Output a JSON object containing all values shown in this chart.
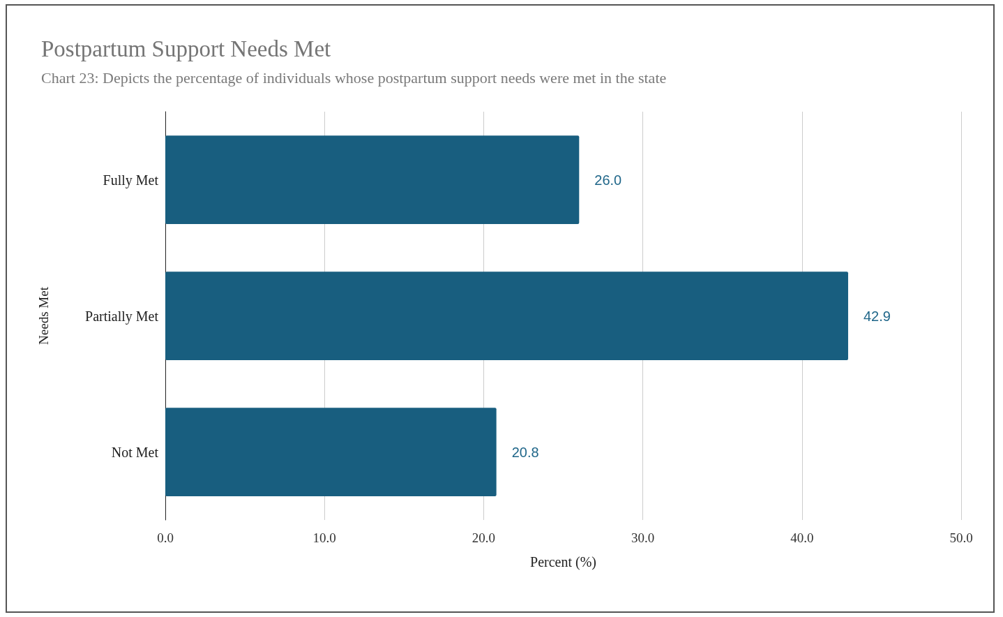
{
  "chart_data": {
    "type": "bar",
    "orientation": "horizontal",
    "title": "Postpartum Support Needs Met",
    "subtitle": "Chart 23: Depicts the percentage of individuals whose postpartum support needs were met in the state",
    "xlabel": "Percent (%)",
    "ylabel": "Needs Met",
    "categories": [
      "Fully Met",
      "Partially Met",
      "Not Met"
    ],
    "values": [
      26.0,
      42.9,
      20.8
    ],
    "value_labels": [
      "26.0",
      "42.9",
      "20.8"
    ],
    "color": "#185e7f",
    "xlim": [
      0,
      50
    ],
    "xticks": [
      {
        "value": 0,
        "label": "0.0"
      },
      {
        "value": 10,
        "label": "10.0"
      },
      {
        "value": 20,
        "label": "20.0"
      },
      {
        "value": 30,
        "label": "30.0"
      },
      {
        "value": 40,
        "label": "40.0"
      },
      {
        "value": 50,
        "label": "50.0"
      }
    ],
    "grid": "x"
  }
}
